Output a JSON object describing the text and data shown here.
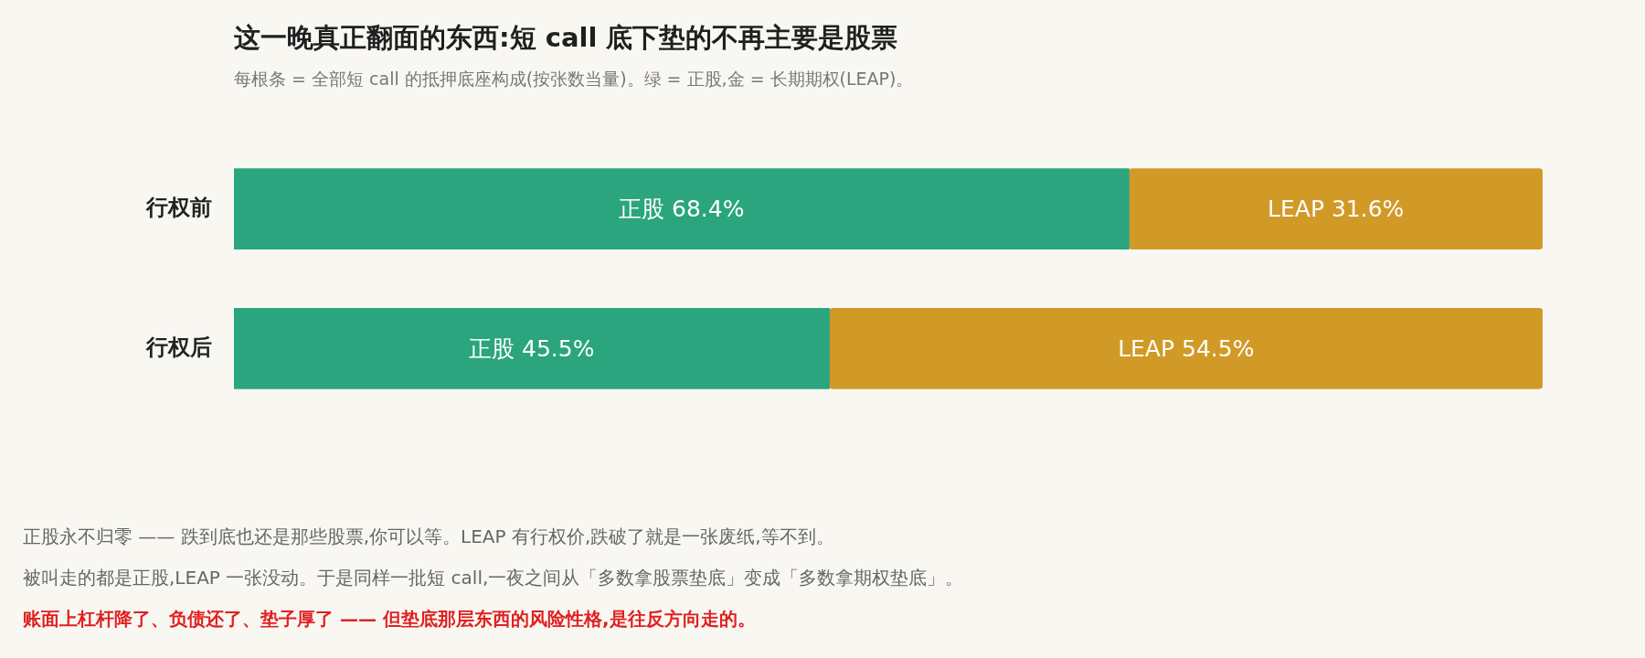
{
  "chart_data": {
    "type": "bar",
    "orientation": "horizontal",
    "stacked": true,
    "title": "这一晚真正翻面的东西:短 call 底下垫的不再主要是股票",
    "subtitle": "每根条 = 全部短 call 的抵押底座构成(按张数当量)。绿 = 正股,金 = 长期期权(LEAP)。",
    "categories": [
      "行权前",
      "行权后"
    ],
    "series": [
      {
        "name": "正股",
        "color": "#2aa57e",
        "values": [
          68.4,
          45.5
        ],
        "value_labels": [
          "68.4%",
          "45.5%"
        ]
      },
      {
        "name": "LEAP",
        "color": "#d19a27",
        "values": [
          31.6,
          54.5
        ],
        "value_labels": [
          "31.6%",
          "54.5%"
        ]
      }
    ],
    "grid": false,
    "legend": false,
    "tick_labels": "y",
    "annotations": [
      "正股永不归零 —— 跌到底也还是那些股票,你可以等。LEAP 有行权价,跌破了就是一张废纸,等不到。",
      "被叫走的都是正股,LEAP 一张没动。于是同样一批短 call,一夜之间从「多数拿股票垫底」变成「多数拿期权垫底」。",
      "账面上杠杆降了、负债还了、垫子厚了 —— 但垫底那层东西的风险性格,是往反方向走的。"
    ]
  }
}
